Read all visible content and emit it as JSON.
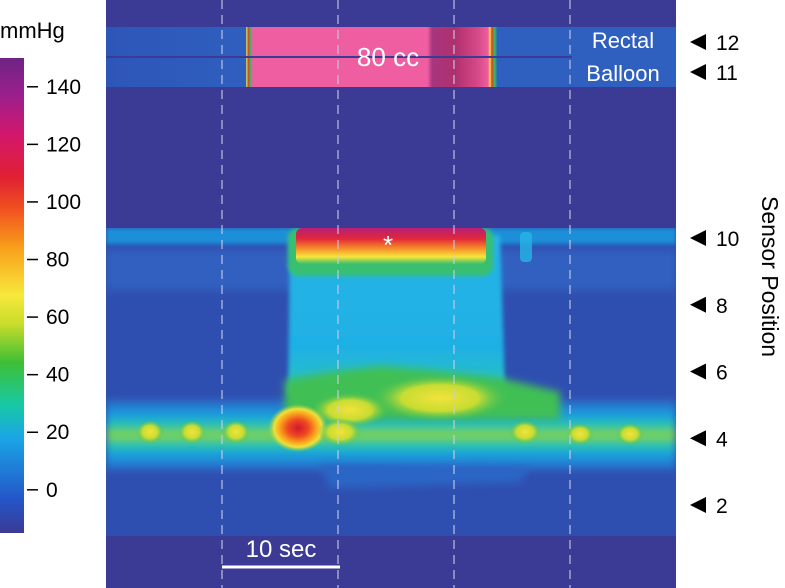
{
  "chart_data": {
    "type": "heatmap",
    "title": "",
    "colorbar": {
      "unit": "mmHg",
      "ticks": [
        140,
        120,
        100,
        80,
        60,
        40,
        20,
        0
      ],
      "range": [
        -15,
        150
      ],
      "colors": [
        "#3b3a94",
        "#2455c8",
        "#1aa5e6",
        "#17c9a4",
        "#3fbf35",
        "#c8dd2a",
        "#f7e83c",
        "#f9a01b",
        "#f1521f",
        "#e02033",
        "#d2176d",
        "#9c1f8c",
        "#6e2485"
      ]
    },
    "rectal_balloon": {
      "label_line1": "Rectal",
      "label_line2": "Balloon",
      "volume_label": "80 cc",
      "sensors": [
        12,
        11
      ]
    },
    "sensor_axis": {
      "title": "Sensor Position",
      "ticks": [
        10,
        8,
        6,
        4,
        2
      ]
    },
    "annotation": "*",
    "time_scale": {
      "label": "10 sec",
      "seconds": 10
    },
    "background_pressure_mmHg": -10,
    "peak_pressure_mmHg": 142
  }
}
